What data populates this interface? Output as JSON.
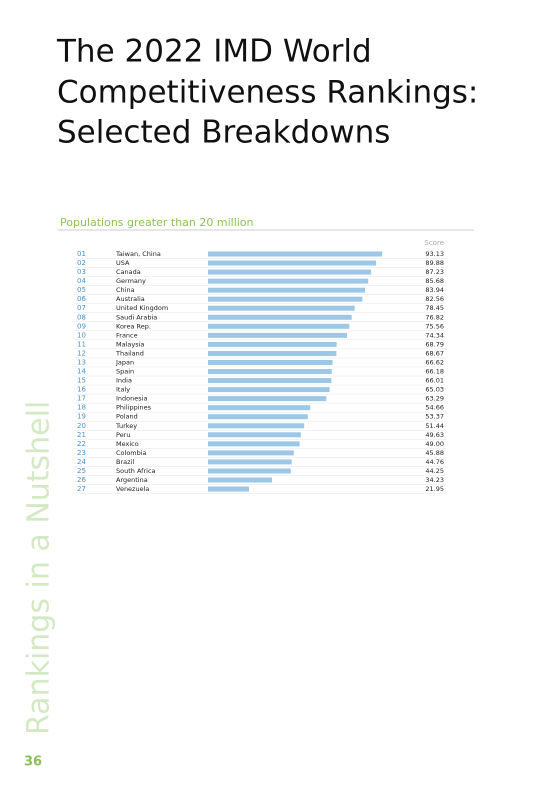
{
  "title": [
    "The 2022 IMD World",
    "Competitiveness Rankings:",
    "Selected Breakdowns"
  ],
  "side_label": "Rankings in a Nutshell",
  "page_number": "36",
  "chart_data": {
    "type": "bar",
    "subtitle": "Populations greater than 20 million",
    "value_header": "Score",
    "color": "#9cc7e6",
    "ranks": [
      "01",
      "02",
      "03",
      "04",
      "05",
      "06",
      "07",
      "08",
      "09",
      "10",
      "11",
      "12",
      "13",
      "14",
      "15",
      "16",
      "17",
      "18",
      "19",
      "20",
      "21",
      "22",
      "23",
      "24",
      "25",
      "26",
      "27"
    ],
    "categories": [
      "Taiwan, China",
      "USA",
      "Canada",
      "Germany",
      "China",
      "Australia",
      "United Kingdom",
      "Saudi Arabia",
      "Korea Rep.",
      "France",
      "Malaysia",
      "Thailand",
      "Japan",
      "Spain",
      "India",
      "Italy",
      "Indonesia",
      "Philippines",
      "Poland",
      "Turkey",
      "Peru",
      "Mexico",
      "Colombia",
      "Brazil",
      "South Africa",
      "Argentina",
      "Venezuela"
    ],
    "values": [
      93.13,
      89.88,
      87.23,
      85.68,
      83.94,
      82.56,
      78.45,
      76.82,
      75.56,
      74.34,
      68.79,
      68.67,
      66.62,
      66.18,
      66.01,
      65.03,
      63.29,
      54.66,
      53.37,
      51.44,
      49.63,
      49.0,
      45.88,
      44.76,
      44.25,
      34.23,
      21.95
    ],
    "value_labels": [
      "93.13",
      "89.88",
      "87.23",
      "85.68",
      "83.94",
      "82.56",
      "78.45",
      "76.82",
      "75.56",
      "74.34",
      "68.79",
      "68.67",
      "66.62",
      "66.18",
      "66.01",
      "65.03",
      "63.29",
      "54.66",
      "53.37",
      "51.44",
      "49.63",
      "49.00",
      "45.88",
      "44.76",
      "44.25",
      "34.23",
      "21.95"
    ]
  }
}
